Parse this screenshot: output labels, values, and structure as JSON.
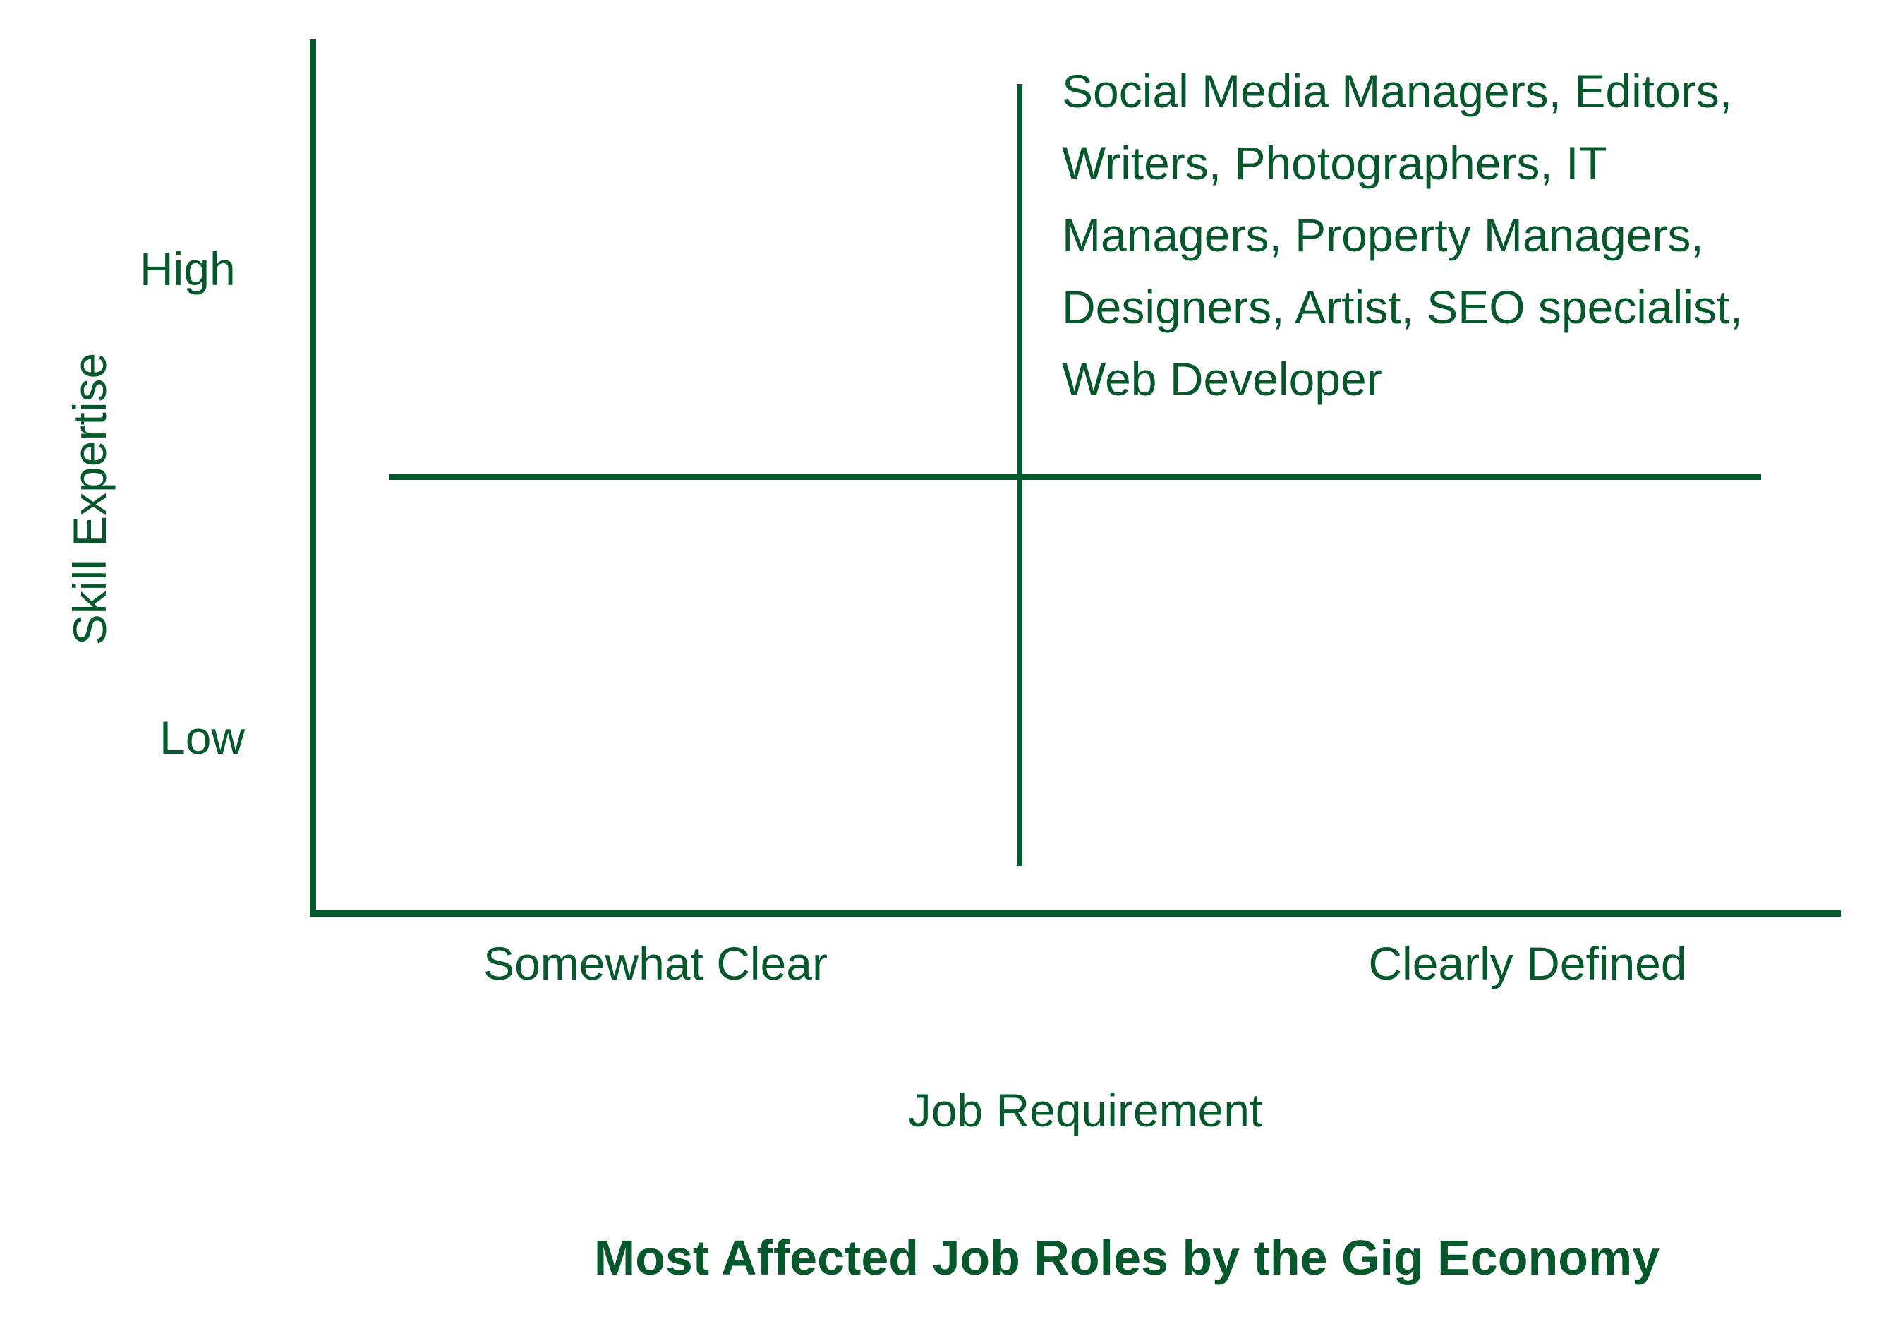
{
  "colors": {
    "accent": "#04582c",
    "background": "#ffffff"
  },
  "chart": {
    "type": "quadrant-diagram",
    "title": "Most Affected Job Roles by the Gig Economy",
    "y_axis": {
      "label": "Skill Expertise",
      "tick_high": "High",
      "tick_low": "Low"
    },
    "x_axis": {
      "label": "Job Requirement",
      "tick_left": "Somewhat Clear",
      "tick_right": "Clearly Defined"
    },
    "annotation": {
      "full_text": "Social Media Managers, Editors, Writers, Photographers, IT Managers, Property Managers, Designers, Artist, SEO specialist, Web Developer",
      "lines": [
        "Social Media Managers, Editors,",
        "Writers, Photographers, IT",
        "Managers, Property Managers,",
        "Designers, Artist, SEO specialist,",
        "Web Developer"
      ]
    }
  }
}
